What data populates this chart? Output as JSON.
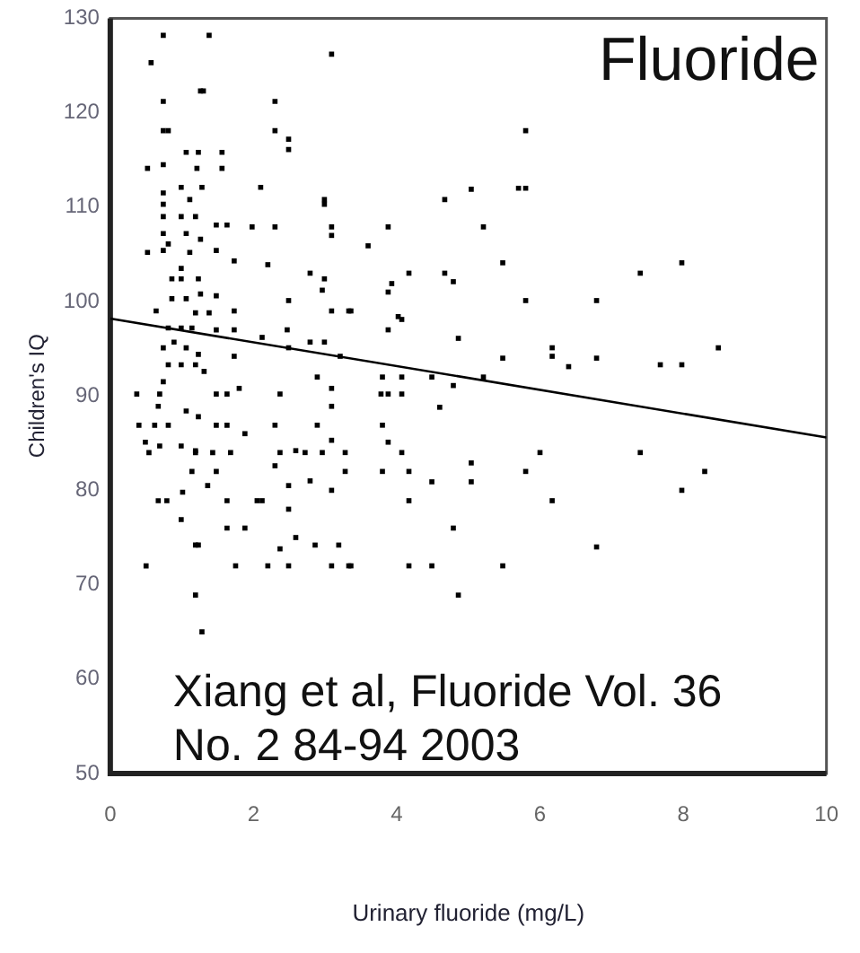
{
  "chart_data": {
    "type": "scatter",
    "xlabel": "Urinary fluoride (mg/L)",
    "ylabel": "Children's IQ",
    "xlim": [
      0,
      10
    ],
    "ylim": [
      50,
      130
    ],
    "xticks": [
      0,
      2,
      4,
      6,
      8,
      10
    ],
    "yticks": [
      50,
      60,
      70,
      80,
      90,
      100,
      110,
      120,
      130
    ],
    "grid": false,
    "legend": false,
    "annotations": [
      "Fluoride",
      "Xiang et al, Fluoride Vol. 36 No. 2 84-94 2003"
    ],
    "series": [
      {
        "color": "#000000",
        "marker": "square",
        "x": [
          5.8,
          5.04,
          5.7,
          5.8,
          4.67,
          3.88,
          5.21,
          3.6,
          5.48,
          7.4,
          7.98,
          4.17,
          4.67,
          4.79,
          3.93,
          3.88,
          3.36,
          5.8,
          6.79,
          4.07,
          3.88,
          4.86,
          8.49,
          6.17,
          6.17,
          5.48,
          6.4,
          6.79,
          7.68,
          7.98,
          3.8,
          4.07,
          4.49,
          4.79,
          5.21,
          3.88,
          4.07,
          4.6,
          3.8,
          3.88,
          4.07,
          6.0,
          7.4,
          3.28,
          3.8,
          4.17,
          5.04,
          5.04,
          4.49,
          5.8,
          8.3,
          7.98,
          4.17,
          6.17,
          4.79,
          6.79,
          3.36,
          4.17,
          4.49,
          5.48,
          4.86,
          0.5,
          1.19,
          1.28,
          1.19,
          1.23,
          1.75,
          2.2,
          2.49,
          3.09,
          3.33,
          1.63,
          1.88,
          2.37,
          2.59,
          2.86,
          3.19,
          0.67,
          0.79,
          0.99,
          1.63,
          2.05,
          2.12,
          2.49,
          1.01,
          1.14,
          1.36,
          1.48,
          2.3,
          2.49,
          2.79,
          3.09,
          0.54,
          1.19,
          1.43,
          1.68,
          2.37,
          2.72,
          2.96,
          3.28,
          0.74,
          1.38,
          3.09,
          0.57,
          1.26,
          1.3,
          0.74,
          2.3,
          0.74,
          0.81,
          2.3,
          2.49,
          2.49,
          0.52,
          0.74,
          1.06,
          1.23,
          1.21,
          1.56,
          1.56,
          2.1,
          0.74,
          0.74,
          0.99,
          1.11,
          1.28,
          2.99,
          2.99,
          0.74,
          0.99,
          1.19,
          1.48,
          1.63,
          1.98,
          2.3,
          3.09,
          3.09,
          0.74,
          1.06,
          1.26,
          0.52,
          0.74,
          0.81,
          1.11,
          1.48,
          1.73,
          2.2,
          0.99,
          0.86,
          0.99,
          1.23,
          2.79,
          2.99,
          2.96,
          0.86,
          1.06,
          1.26,
          1.48,
          2.49,
          3.09,
          3.33,
          4.02,
          0.64,
          1.19,
          1.38,
          1.73,
          0.81,
          0.99,
          1.14,
          1.48,
          1.73,
          2.12,
          2.47,
          2.49,
          2.79,
          2.99,
          3.21,
          0.74,
          0.89,
          1.06,
          1.23,
          1.73,
          0.81,
          0.99,
          1.19,
          1.31,
          0.74,
          0.69,
          0.37,
          1.48,
          1.63,
          1.8,
          2.37,
          2.89,
          3.09,
          3.09,
          3.78,
          0.4,
          0.62,
          0.81,
          1.06,
          1.23,
          1.48,
          1.63,
          1.88,
          0.67,
          0.49,
          0.69,
          0.99,
          1.19,
          2.3,
          2.89,
          2.59,
          3.09
        ],
        "values": [
          118.1,
          111.9,
          112.0,
          112.0,
          110.8,
          107.9,
          107.9,
          105.9,
          104.1,
          103.0,
          104.1,
          103.0,
          103.0,
          102.1,
          101.9,
          101.0,
          99.0,
          100.1,
          100.1,
          98.1,
          97.0,
          96.1,
          95.1,
          95.1,
          94.2,
          94.0,
          93.1,
          94.0,
          93.3,
          93.3,
          92.0,
          92.0,
          92.0,
          91.1,
          92.0,
          90.2,
          90.2,
          88.8,
          86.9,
          85.1,
          84.0,
          84.0,
          84.0,
          82.0,
          82.0,
          82.0,
          82.9,
          80.9,
          80.9,
          82.0,
          82.0,
          80.0,
          78.9,
          78.9,
          76.0,
          74.0,
          72.0,
          72.0,
          72.0,
          72.0,
          68.9,
          72.0,
          68.9,
          65.0,
          74.2,
          74.2,
          72.0,
          72.0,
          72.0,
          72.0,
          72.0,
          76.0,
          76.0,
          73.8,
          75.0,
          74.2,
          74.2,
          78.9,
          78.9,
          76.9,
          78.9,
          78.9,
          78.9,
          78.0,
          79.8,
          82.0,
          80.5,
          82.0,
          82.6,
          80.5,
          81.0,
          80.0,
          84.0,
          84.0,
          84.0,
          84.0,
          84.0,
          84.0,
          84.0,
          84.0,
          128.2,
          128.2,
          126.2,
          125.3,
          122.3,
          122.3,
          121.2,
          121.2,
          118.1,
          118.1,
          118.1,
          117.2,
          116.1,
          114.1,
          114.5,
          115.8,
          115.8,
          114.1,
          115.8,
          114.1,
          112.1,
          111.5,
          110.3,
          112.1,
          110.8,
          112.1,
          110.8,
          110.3,
          109.0,
          109.0,
          109.0,
          108.1,
          108.1,
          107.9,
          107.9,
          107.9,
          107.0,
          107.2,
          107.2,
          106.6,
          105.2,
          105.4,
          106.1,
          105.2,
          105.4,
          104.3,
          103.9,
          103.5,
          102.4,
          102.4,
          102.4,
          103.0,
          102.4,
          101.2,
          100.3,
          100.3,
          100.8,
          100.6,
          100.1,
          99.0,
          99.0,
          98.4,
          99.0,
          98.8,
          98.8,
          99.0,
          97.2,
          97.2,
          97.2,
          97.0,
          97.0,
          96.2,
          97.0,
          95.1,
          95.7,
          95.7,
          94.2,
          95.1,
          95.7,
          95.1,
          94.4,
          94.2,
          93.3,
          93.3,
          93.3,
          92.6,
          91.5,
          90.2,
          90.2,
          90.2,
          90.2,
          90.8,
          90.2,
          92.0,
          90.8,
          88.9,
          90.2,
          86.9,
          86.9,
          86.9,
          88.4,
          87.8,
          86.9,
          86.9,
          86.0,
          88.9,
          85.1,
          84.7,
          84.7,
          84.2,
          86.9,
          86.9,
          84.2,
          85.3
        ]
      },
      {
        "type": "line",
        "marker": "none",
        "color": "#000000",
        "x": [
          0,
          10
        ],
        "values": [
          98.2,
          85.6
        ]
      }
    ]
  }
}
